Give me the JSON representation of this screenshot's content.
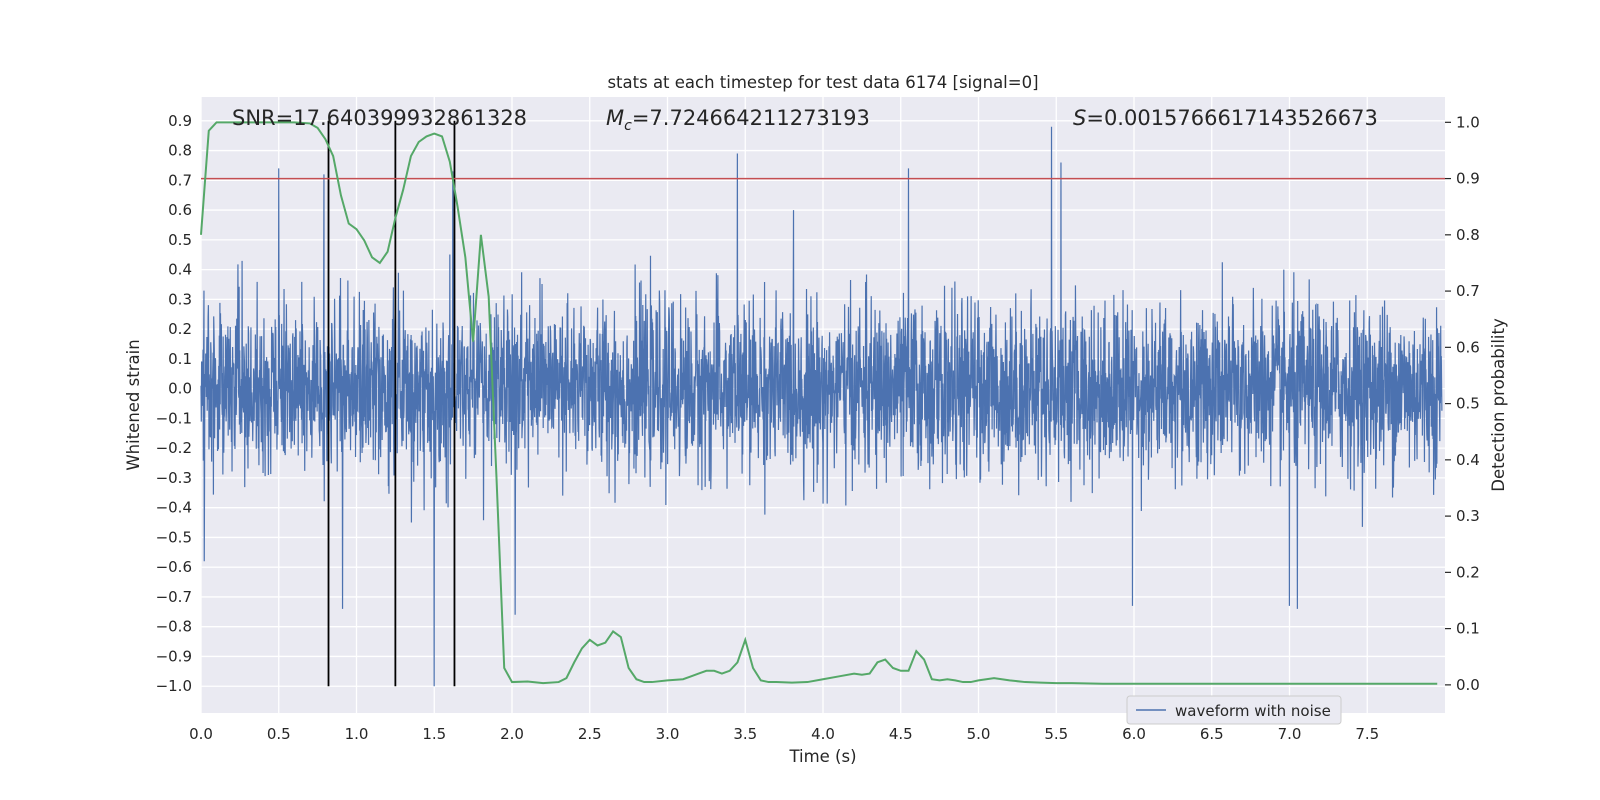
{
  "chart_data": {
    "type": "line",
    "title": "stats at each timestep for test data 6174 [signal=0]",
    "xlabel": "Time (s)",
    "ylabel": "Whitened strain",
    "ylabel_right": "Detection probability",
    "xlim": [
      0.0,
      8.0
    ],
    "ylim": [
      -1.09,
      0.98
    ],
    "ylim_right": [
      -0.05,
      1.045
    ],
    "xticks": [
      0.0,
      0.5,
      1.0,
      1.5,
      2.0,
      2.5,
      3.0,
      3.5,
      4.0,
      4.5,
      5.0,
      5.5,
      6.0,
      6.5,
      7.0,
      7.5
    ],
    "xtick_labels": [
      "0.0",
      "0.5",
      "1.0",
      "1.5",
      "2.0",
      "2.5",
      "3.0",
      "3.5",
      "4.0",
      "4.5",
      "5.0",
      "5.5",
      "6.0",
      "6.5",
      "7.0",
      "7.5"
    ],
    "yticks": [
      0.9,
      0.8,
      0.7,
      0.6,
      0.5,
      0.4,
      0.3,
      0.2,
      0.1,
      0.0,
      -0.1,
      -0.2,
      -0.3,
      -0.4,
      -0.5,
      -0.6,
      -0.7,
      -0.8,
      -0.9,
      -1.0
    ],
    "ytick_labels": [
      "0.9",
      "0.8",
      "0.7",
      "0.6",
      "0.5",
      "0.4",
      "0.3",
      "0.2",
      "0.1",
      "0.0",
      "−0.1",
      "−0.2",
      "−0.3",
      "−0.4",
      "−0.5",
      "−0.6",
      "−0.7",
      "−0.8",
      "−0.9",
      "−1.0"
    ],
    "yticks_right": [
      1.0,
      0.9,
      0.8,
      0.7,
      0.6,
      0.5,
      0.4,
      0.3,
      0.2,
      0.1,
      0.0
    ],
    "ytick_labels_right": [
      "1.0",
      "0.9",
      "0.8",
      "0.7",
      "0.6",
      "0.5",
      "0.4",
      "0.3",
      "0.2",
      "0.1",
      "0.0"
    ],
    "annotations": {
      "snr": "SNR=17.640399932861328",
      "mc_symbol": "M",
      "mc_sub": "c",
      "mc_value": "=7.724664211273193",
      "s_symbol": "S",
      "s_value": "=0.0015766617143526673"
    },
    "threshold_right": 0.9,
    "vlines_x": [
      0.82,
      1.25,
      1.63
    ],
    "vline_range": [
      -1.0,
      0.9
    ],
    "series": [
      {
        "name": "waveform with noise",
        "color": "#4c72b0",
        "axis": "left",
        "description": "whitened strain noise, amplitude envelope ~±0.3 with spikes",
        "peaks": [
          {
            "x": 0.02,
            "y": -0.58
          },
          {
            "x": 0.5,
            "y": 0.74
          },
          {
            "x": 0.79,
            "y": 0.72
          },
          {
            "x": 0.91,
            "y": -0.74
          },
          {
            "x": 1.5,
            "y": -1.0
          },
          {
            "x": 1.62,
            "y": 0.73
          },
          {
            "x": 2.02,
            "y": -0.76
          },
          {
            "x": 3.45,
            "y": 0.79
          },
          {
            "x": 4.55,
            "y": 0.74
          },
          {
            "x": 5.47,
            "y": 0.88
          },
          {
            "x": 5.53,
            "y": 0.76
          },
          {
            "x": 5.99,
            "y": -0.73
          },
          {
            "x": 7.05,
            "y": -0.74
          },
          {
            "x": 7.0,
            "y": -0.73
          }
        ]
      },
      {
        "name": "Detection probability",
        "color": "#55a868",
        "axis": "right",
        "x": [
          0.0,
          0.05,
          0.1,
          0.2,
          0.3,
          0.4,
          0.5,
          0.6,
          0.7,
          0.75,
          0.8,
          0.85,
          0.9,
          0.95,
          1.0,
          1.05,
          1.1,
          1.15,
          1.2,
          1.25,
          1.3,
          1.35,
          1.4,
          1.45,
          1.5,
          1.55,
          1.6,
          1.65,
          1.7,
          1.75,
          1.8,
          1.85,
          1.9,
          1.95,
          2.0,
          2.1,
          2.2,
          2.3,
          2.35,
          2.4,
          2.45,
          2.5,
          2.55,
          2.6,
          2.65,
          2.7,
          2.75,
          2.8,
          2.85,
          2.9,
          3.0,
          3.1,
          3.15,
          3.2,
          3.25,
          3.3,
          3.35,
          3.4,
          3.45,
          3.5,
          3.55,
          3.6,
          3.65,
          3.7,
          3.8,
          3.9,
          4.0,
          4.1,
          4.2,
          4.25,
          4.3,
          4.35,
          4.4,
          4.45,
          4.5,
          4.55,
          4.6,
          4.65,
          4.7,
          4.75,
          4.8,
          4.85,
          4.9,
          4.95,
          5.0,
          5.1,
          5.15,
          5.2,
          5.3,
          5.4,
          5.5,
          5.6,
          5.8,
          6.0,
          6.2,
          6.5,
          7.0,
          7.5,
          7.95
        ],
        "values": [
          0.8,
          0.985,
          1.0,
          1.0,
          1.0,
          1.0,
          1.0,
          1.0,
          0.998,
          0.99,
          0.97,
          0.94,
          0.87,
          0.82,
          0.81,
          0.79,
          0.76,
          0.75,
          0.77,
          0.83,
          0.88,
          0.94,
          0.965,
          0.975,
          0.98,
          0.975,
          0.93,
          0.85,
          0.76,
          0.61,
          0.8,
          0.69,
          0.37,
          0.03,
          0.005,
          0.006,
          0.003,
          0.005,
          0.012,
          0.04,
          0.065,
          0.08,
          0.07,
          0.075,
          0.095,
          0.085,
          0.03,
          0.01,
          0.005,
          0.005,
          0.008,
          0.01,
          0.015,
          0.02,
          0.025,
          0.025,
          0.02,
          0.025,
          0.04,
          0.08,
          0.03,
          0.008,
          0.005,
          0.005,
          0.004,
          0.005,
          0.01,
          0.015,
          0.02,
          0.018,
          0.02,
          0.04,
          0.045,
          0.03,
          0.025,
          0.025,
          0.06,
          0.045,
          0.01,
          0.008,
          0.01,
          0.008,
          0.005,
          0.005,
          0.008,
          0.012,
          0.01,
          0.008,
          0.005,
          0.004,
          0.003,
          0.003,
          0.002,
          0.002,
          0.002,
          0.002,
          0.002,
          0.002,
          0.002
        ]
      }
    ],
    "legend": {
      "label": "waveform with noise",
      "placement": "lower-right"
    }
  }
}
